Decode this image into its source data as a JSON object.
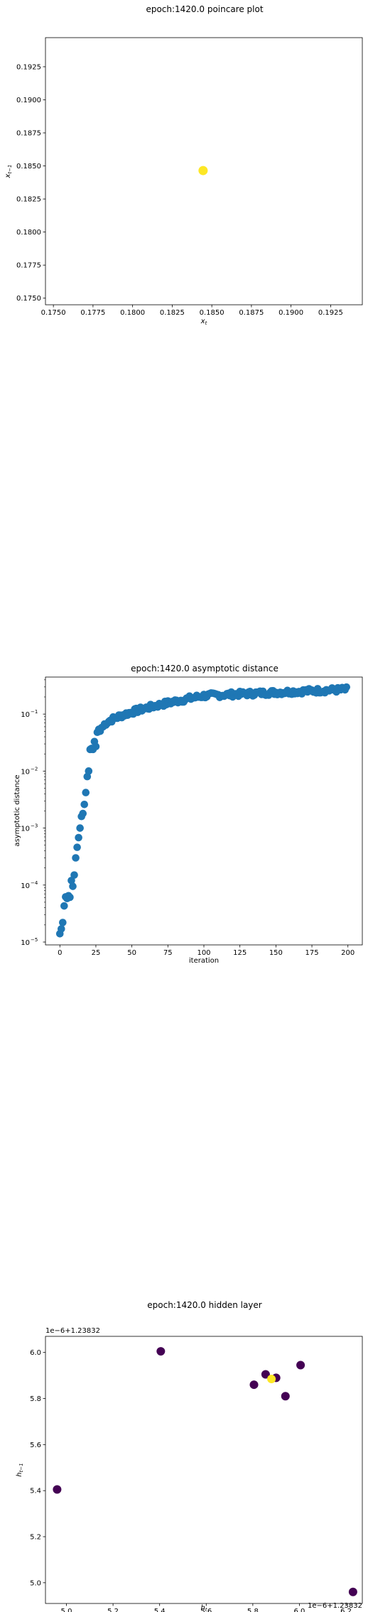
{
  "chart_data": [
    {
      "type": "scatter",
      "title": "epoch:1420.0 poincare plot",
      "xlabel": "x_t",
      "ylabel": "x_{t-1}",
      "xlim": [
        0.1745,
        0.1945
      ],
      "ylim": [
        0.1745,
        0.1947
      ],
      "xticks": [
        0.175,
        0.1775,
        0.18,
        0.1825,
        0.185,
        0.1875,
        0.19,
        0.1925
      ],
      "xtick_labels": [
        "0.1750",
        "0.1775",
        "0.1800",
        "0.1825",
        "0.1850",
        "0.1875",
        "0.1900",
        "0.1925"
      ],
      "yticks": [
        0.175,
        0.1775,
        0.18,
        0.1825,
        0.185,
        0.1875,
        0.19,
        0.1925
      ],
      "ytick_labels": [
        "0.1750",
        "0.1775",
        "0.1800",
        "0.1825",
        "0.1850",
        "0.1875",
        "0.1900",
        "0.1925"
      ],
      "points": [
        {
          "x": 0.18445,
          "y": 0.18465,
          "color": "#fde725"
        }
      ]
    },
    {
      "type": "scatter",
      "title": "epoch:1420.0 asymptotic distance",
      "xlabel": "iteration",
      "ylabel": "asymptotic distance",
      "yscale": "log",
      "xlim": [
        -10,
        210
      ],
      "ylim_log10": [
        -5.05,
        -0.35
      ],
      "xticks": [
        0,
        25,
        50,
        75,
        100,
        125,
        150,
        175,
        200
      ],
      "xtick_labels": [
        "0",
        "25",
        "50",
        "75",
        "100",
        "125",
        "150",
        "175",
        "200"
      ],
      "yticks_log10": [
        -5,
        -4,
        -3,
        -2,
        -1
      ],
      "ytick_labels": [
        "10",
        "10",
        "10",
        "10",
        "10"
      ],
      "ytick_exponents": [
        "−5",
        "−4",
        "−3",
        "−2",
        "−1"
      ],
      "color": "#1f77b4",
      "series_early": [
        [
          0,
          1.4e-05
        ],
        [
          1,
          1.7e-05
        ],
        [
          2,
          2.2e-05
        ],
        [
          3,
          4.3e-05
        ],
        [
          4,
          6.2e-05
        ],
        [
          5,
          5.8e-05
        ],
        [
          6,
          6.5e-05
        ],
        [
          7,
          6.1e-05
        ],
        [
          8,
          0.00012
        ],
        [
          9,
          9.5e-05
        ],
        [
          10,
          0.00015
        ],
        [
          11,
          0.0003
        ],
        [
          12,
          0.00046
        ],
        [
          13,
          0.00068
        ],
        [
          14,
          0.001
        ],
        [
          15,
          0.0016
        ],
        [
          16,
          0.0018
        ],
        [
          17,
          0.0026
        ],
        [
          18,
          0.0042
        ],
        [
          19,
          0.008
        ],
        [
          20,
          0.01
        ],
        [
          21,
          0.024
        ],
        [
          22,
          0.025
        ],
        [
          23,
          0.024
        ],
        [
          24,
          0.033
        ],
        [
          25,
          0.027
        ],
        [
          26,
          0.048
        ],
        [
          27,
          0.054
        ],
        [
          28,
          0.05
        ],
        [
          29,
          0.058
        ]
      ],
      "trend": {
        "start_x": 30,
        "end_x": 199,
        "start_y": 0.06,
        "y_at_100": 0.21,
        "end_y": 0.27,
        "jitter": 0.09
      }
    },
    {
      "type": "scatter",
      "title": "epoch:1420.0 hidden layer",
      "xlabel": "h_t",
      "ylabel": "h_{t-1}",
      "x_offset_label": "1e−6+1.23832",
      "y_offset_label": "1e−6+1.23832",
      "xlim": [
        4.91,
        6.27
      ],
      "ylim": [
        4.91,
        6.07
      ],
      "xticks": [
        5.0,
        5.2,
        5.4,
        5.6,
        5.8,
        6.0,
        6.2
      ],
      "xtick_labels": [
        "5.0",
        "5.2",
        "5.4",
        "5.6",
        "5.8",
        "6.0",
        "6.2"
      ],
      "yticks": [
        5.0,
        5.2,
        5.4,
        5.6,
        5.8,
        6.0
      ],
      "ytick_labels": [
        "5.0",
        "5.2",
        "5.4",
        "5.6",
        "5.8",
        "6.0"
      ],
      "points": [
        {
          "x": 4.96,
          "y": 5.405,
          "color": "#440154"
        },
        {
          "x": 5.405,
          "y": 6.005,
          "color": "#440154"
        },
        {
          "x": 5.805,
          "y": 5.86,
          "color": "#440154"
        },
        {
          "x": 5.855,
          "y": 5.905,
          "color": "#440154"
        },
        {
          "x": 5.9,
          "y": 5.89,
          "color": "#440154"
        },
        {
          "x": 5.94,
          "y": 5.81,
          "color": "#440154"
        },
        {
          "x": 6.005,
          "y": 5.945,
          "color": "#440154"
        },
        {
          "x": 6.23,
          "y": 4.96,
          "color": "#440154"
        },
        {
          "x": 5.88,
          "y": 5.885,
          "color": "#fde725"
        }
      ]
    }
  ]
}
